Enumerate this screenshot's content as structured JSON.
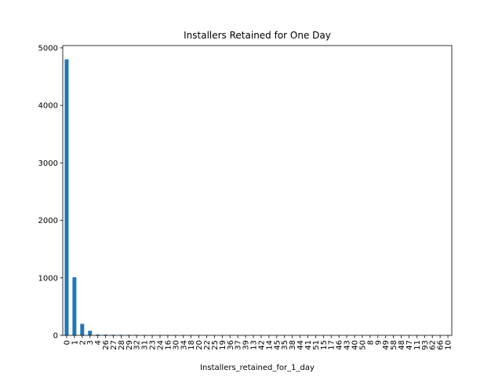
{
  "chart_data": {
    "type": "bar",
    "title": "Installers Retained for One Day",
    "xlabel": "Installers_retained_for_1_day",
    "ylabel": "",
    "ylim": [
      0,
      5040
    ],
    "yticks": [
      0,
      1000,
      2000,
      3000,
      4000,
      5000
    ],
    "grid": false,
    "color": "#1f77b4",
    "categories": [
      "0",
      "1",
      "2",
      "3",
      "4",
      "26",
      "27",
      "28",
      "29",
      "32",
      "31",
      "23",
      "24",
      "16",
      "30",
      "34",
      "18",
      "20",
      "22",
      "25",
      "19",
      "36",
      "37",
      "39",
      "13",
      "42",
      "14",
      "45",
      "35",
      "38",
      "44",
      "41",
      "51",
      "15",
      "17",
      "46",
      "43",
      "40",
      "50",
      "8",
      "9",
      "49",
      "58",
      "48",
      "47",
      "11",
      "93",
      "62",
      "66",
      "10"
    ],
    "values": [
      4800,
      1010,
      200,
      80,
      15,
      12,
      10,
      9,
      8,
      8,
      7,
      6,
      5,
      5,
      4,
      4,
      4,
      3,
      3,
      3,
      3,
      3,
      2,
      2,
      2,
      2,
      2,
      2,
      2,
      2,
      1,
      1,
      1,
      1,
      1,
      1,
      1,
      1,
      1,
      1,
      1,
      1,
      1,
      1,
      1,
      1,
      1,
      1,
      1,
      1
    ]
  }
}
